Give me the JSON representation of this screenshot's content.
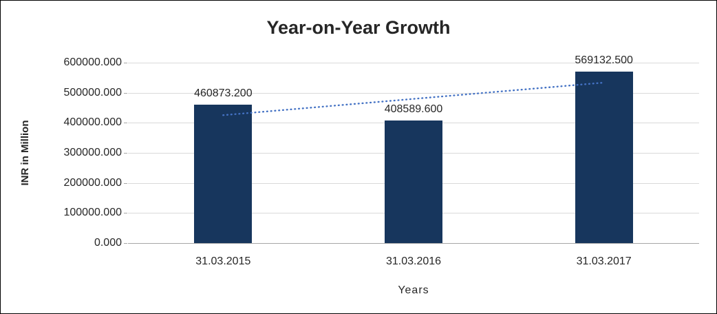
{
  "chart_data": {
    "type": "bar",
    "title": "Year-on-Year Growth",
    "xlabel": "Years",
    "ylabel": "INR in Million",
    "categories": [
      "31.03.2015",
      "31.03.2016",
      "31.03.2017"
    ],
    "values": [
      460873.2,
      408589.6,
      569132.5
    ],
    "data_labels": [
      "460873.200",
      "408589.600",
      "569132.500"
    ],
    "y_ticks": [
      0,
      100000,
      200000,
      300000,
      400000,
      500000,
      600000
    ],
    "y_tick_labels": [
      "0.000",
      "100000.000",
      "200000.000",
      "300000.000",
      "400000.000",
      "500000.000",
      "600000.000"
    ],
    "ylim": [
      0,
      600000
    ],
    "grid": true,
    "legend": false,
    "trendline": "linear",
    "colors": {
      "bar": "#17365D",
      "trendline": "#4472C4",
      "gridline": "#D9D9D9",
      "axis": "#A6A6A6",
      "text": "#262626"
    }
  }
}
